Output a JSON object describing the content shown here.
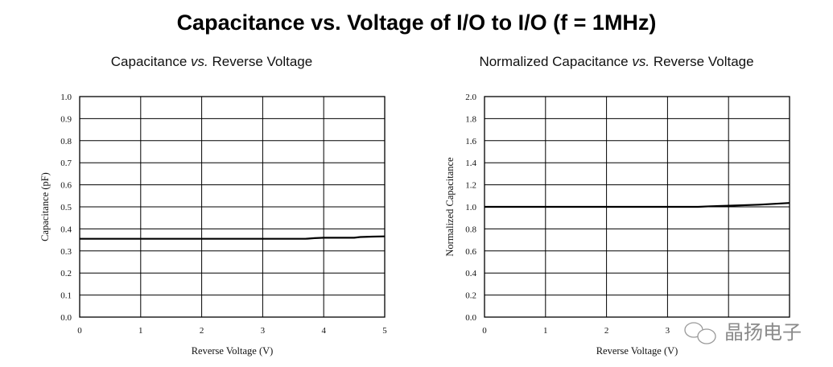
{
  "title": "Capacitance vs. Voltage of I/O to I/O (f = 1MHz)",
  "watermark": "晶扬电子",
  "chart_data": [
    {
      "type": "line",
      "title_parts": [
        "Capacitance ",
        "vs.",
        " Reverse Voltage"
      ],
      "xlabel": "Reverse Voltage (V)",
      "ylabel": "Capacitance (pF)",
      "xlim": [
        0,
        5
      ],
      "ylim": [
        0,
        1.0
      ],
      "xticks": [
        0,
        1,
        2,
        3,
        4,
        5
      ],
      "xtick_labels": [
        "0",
        "1",
        "2",
        "3",
        "4",
        "5"
      ],
      "yticks": [
        0,
        0.1,
        0.2,
        0.3,
        0.4,
        0.5,
        0.6,
        0.7,
        0.8,
        0.9,
        1.0
      ],
      "ytick_labels": [
        "0.0",
        "0.1",
        "0.2",
        "0.3",
        "0.4",
        "0.5",
        "0.6",
        "0.7",
        "0.8",
        "0.9",
        "1.0"
      ],
      "grid": true,
      "series": [
        {
          "name": "Capacitance",
          "x": [
            0,
            1,
            2,
            3,
            3.7,
            3.85,
            4.0,
            4.5,
            4.6,
            4.8,
            5.0
          ],
          "y": [
            0.355,
            0.355,
            0.355,
            0.355,
            0.355,
            0.358,
            0.36,
            0.36,
            0.363,
            0.365,
            0.366
          ]
        }
      ]
    },
    {
      "type": "line",
      "title_parts": [
        "Normalized Capacitance ",
        "vs.",
        " Reverse Voltage"
      ],
      "xlabel": "Reverse Voltage (V)",
      "ylabel": "Normalized Capacitance",
      "xlim": [
        0,
        5
      ],
      "ylim": [
        0,
        2.0
      ],
      "xticks": [
        0,
        1,
        2,
        3
      ],
      "xtick_labels": [
        "0",
        "1",
        "2",
        "3"
      ],
      "yticks": [
        0,
        0.2,
        0.4,
        0.6,
        0.8,
        1.0,
        1.2,
        1.4,
        1.6,
        1.8,
        2.0
      ],
      "ytick_labels": [
        "0.0",
        "0.2",
        "0.4",
        "0.6",
        "0.8",
        "1.0",
        "1.2",
        "1.4",
        "1.6",
        "1.8",
        "2.0"
      ],
      "grid": true,
      "series": [
        {
          "name": "Normalized Capacitance",
          "x": [
            0,
            1,
            2,
            3,
            3.5,
            3.7,
            4.0,
            4.5,
            5.0
          ],
          "y": [
            1.0,
            1.0,
            1.0,
            1.0,
            1.0,
            1.005,
            1.01,
            1.02,
            1.035
          ]
        }
      ]
    }
  ]
}
